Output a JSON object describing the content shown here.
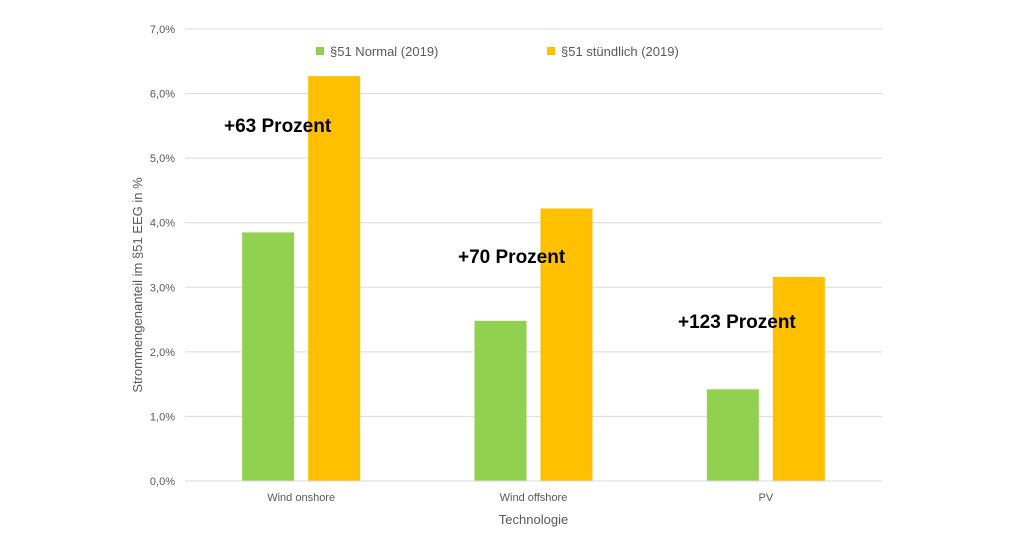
{
  "chart_data": {
    "type": "bar",
    "categories": [
      "Wind onshore",
      "Wind offshore",
      "PV"
    ],
    "series": [
      {
        "name": "§51 Normal (2019)",
        "values": [
          3.85,
          2.48,
          1.42
        ],
        "color": "#92D050"
      },
      {
        "name": "§51 stündlich (2019)",
        "values": [
          6.27,
          4.22,
          3.16
        ],
        "color": "#FFC000"
      }
    ],
    "ylim": [
      0,
      7
    ],
    "yticks": [
      "0,0%",
      "1,0%",
      "2,0%",
      "3,0%",
      "4,0%",
      "5,0%",
      "6,0%",
      "7,0%"
    ],
    "xlabel": "Technologie",
    "ylabel": "Strommengenanteil im §51 EEG in %",
    "grid": true,
    "legend_position": "top",
    "annotations": [
      "+63 Prozent",
      "+70 Prozent",
      "+123 Prozent"
    ]
  }
}
